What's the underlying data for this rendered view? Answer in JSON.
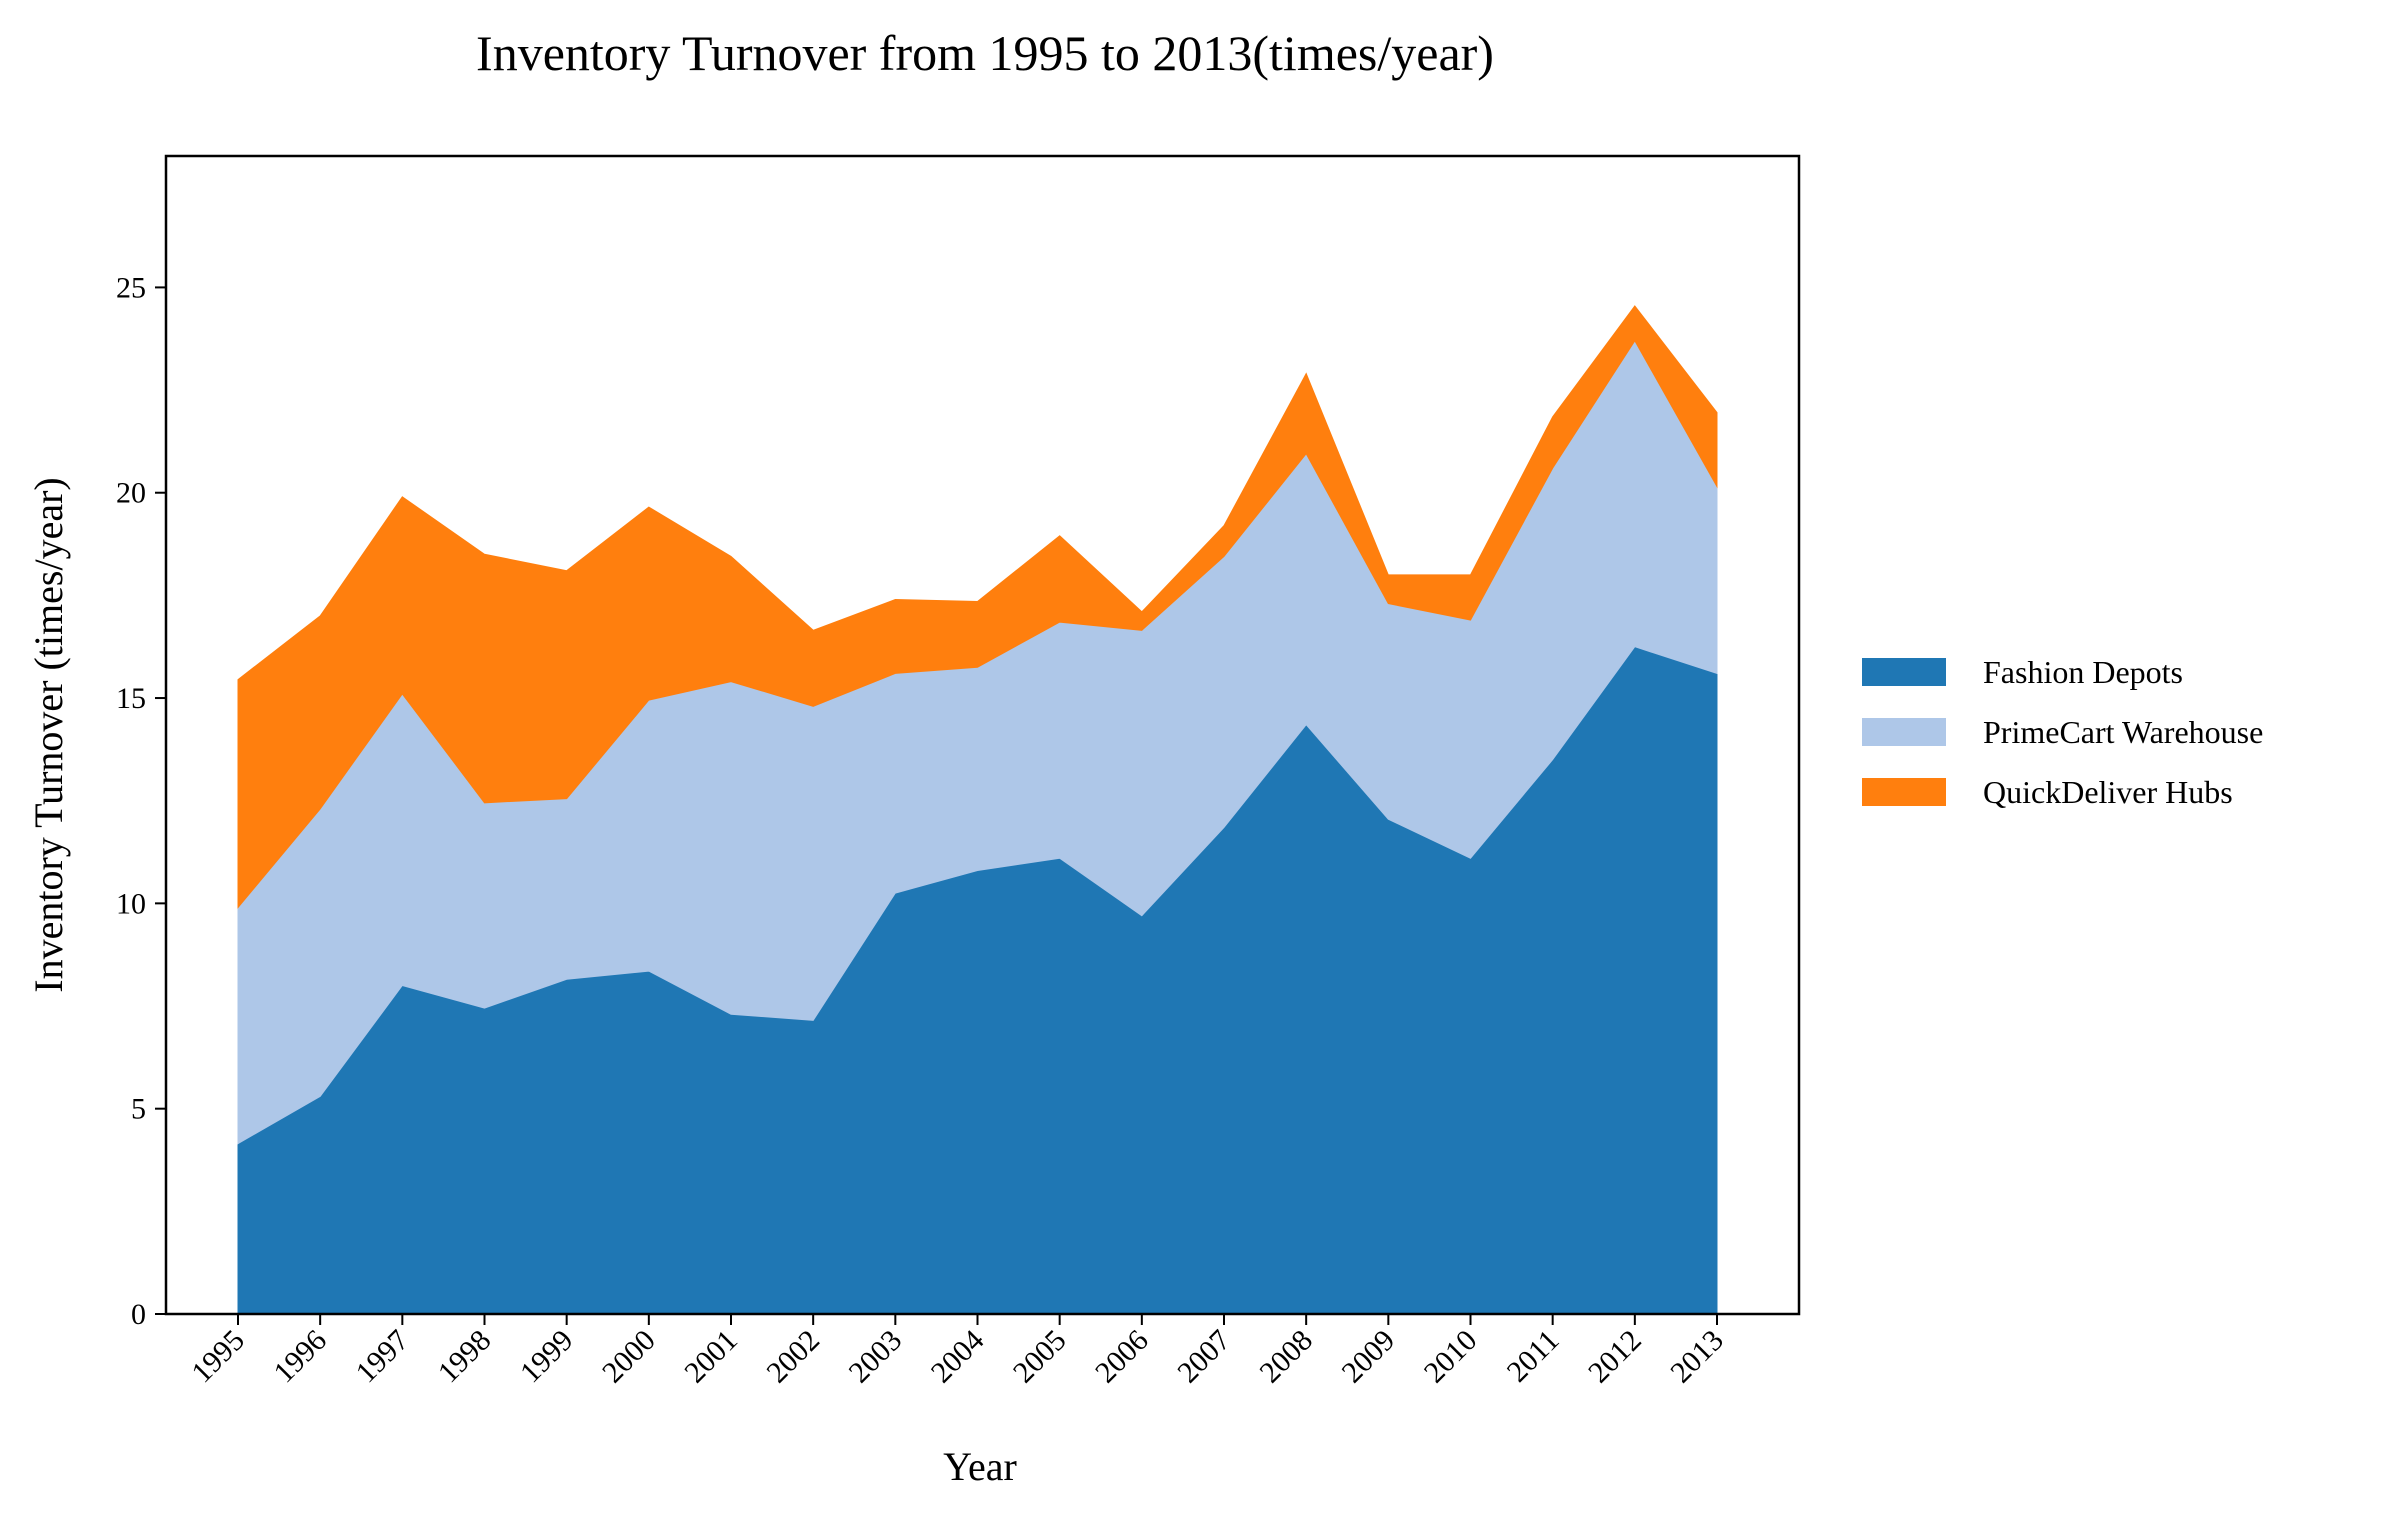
{
  "chart_data": {
    "type": "area",
    "stacked": true,
    "title": "Inventory Turnover from 1995 to 2013(times/year)",
    "xlabel": "Year",
    "ylabel": "Inventory Turnover (times/year)",
    "x": [
      "1995",
      "1996",
      "1997",
      "1998",
      "1999",
      "2000",
      "2001",
      "2002",
      "2003",
      "2004",
      "2005",
      "2006",
      "2007",
      "2008",
      "2009",
      "2010",
      "2011",
      "2012",
      "2013"
    ],
    "ylim": [
      0,
      28.2
    ],
    "yticks": [
      0,
      5,
      10,
      15,
      20,
      25
    ],
    "grid": false,
    "legend_position": "right",
    "series": [
      {
        "name": "Fashion Depots",
        "color": "#1f77b4",
        "values": [
          4.15,
          5.3,
          8.0,
          7.45,
          8.15,
          8.35,
          7.3,
          7.15,
          10.25,
          10.8,
          11.1,
          9.7,
          11.85,
          14.35,
          12.05,
          11.1,
          13.5,
          16.25,
          15.6
        ]
      },
      {
        "name": "PrimeCart Warehouse",
        "color": "#aec7e8",
        "values": [
          5.75,
          7.0,
          7.1,
          5.0,
          4.4,
          6.6,
          8.1,
          7.65,
          5.35,
          4.95,
          5.75,
          6.95,
          6.6,
          6.6,
          5.25,
          5.8,
          7.1,
          7.45,
          4.55
        ]
      },
      {
        "name": "QuickDeliver Hubs",
        "color": "#ff7f0e",
        "values": [
          5.55,
          4.7,
          4.8,
          6.05,
          5.55,
          4.7,
          3.05,
          1.85,
          1.8,
          1.6,
          2.1,
          0.45,
          0.75,
          1.95,
          0.7,
          1.1,
          1.25,
          0.85,
          1.8
        ]
      }
    ]
  }
}
